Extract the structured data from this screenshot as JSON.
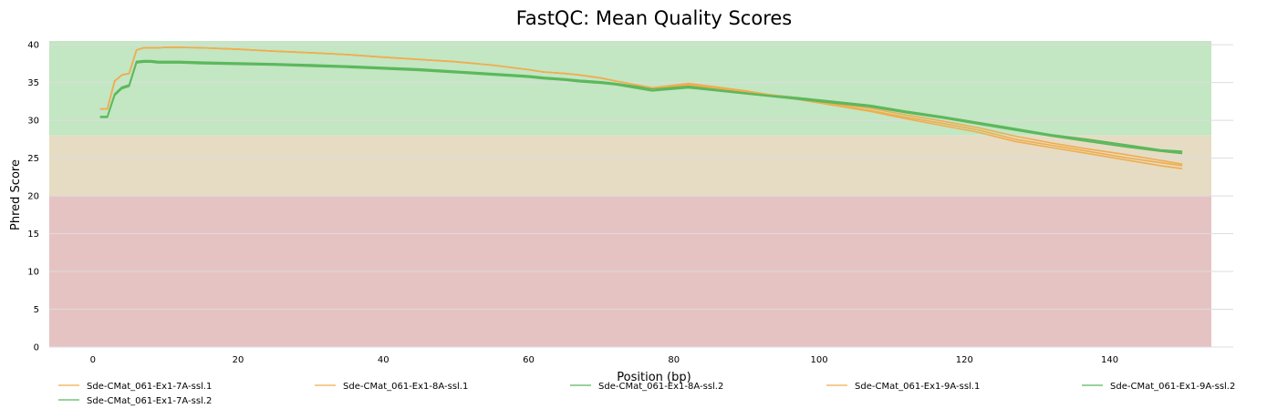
{
  "chart_data": {
    "type": "line",
    "title": "FastQC: Mean Quality Scores",
    "xlabel": "Position (bp)",
    "ylabel": "Phred Score",
    "xlim": [
      -6,
      154
    ],
    "ylim": [
      0,
      40.5
    ],
    "xticks": [
      0,
      20,
      40,
      60,
      80,
      100,
      120,
      140
    ],
    "yticks": [
      0,
      5,
      10,
      15,
      20,
      25,
      30,
      35,
      40
    ],
    "grid": true,
    "legend_position": "bottom",
    "bands": [
      {
        "from": 28,
        "to": 40.5,
        "color": "#c3e6c3"
      },
      {
        "from": 20,
        "to": 28,
        "color": "#e6dcc3"
      },
      {
        "from": 0,
        "to": 20,
        "color": "#e6c3c3"
      }
    ],
    "x": [
      1,
      2,
      3,
      4,
      5,
      6,
      7,
      8,
      9,
      10,
      12,
      15,
      20,
      25,
      30,
      35,
      40,
      45,
      50,
      55,
      60,
      62,
      65,
      67,
      70,
      72,
      77,
      82,
      90,
      100,
      107,
      112,
      117,
      122,
      127,
      132,
      137,
      142,
      147,
      150
    ],
    "series": [
      {
        "name": "Sde-CMat_061-Ex1-7A-ssl.1",
        "color": "#f0ad4e",
        "values": [
          31.5,
          31.5,
          35.2,
          36.0,
          36.2,
          39.3,
          39.6,
          39.6,
          39.6,
          39.65,
          39.65,
          39.6,
          39.4,
          39.15,
          38.95,
          38.7,
          38.35,
          38.05,
          37.75,
          37.3,
          36.7,
          36.4,
          36.2,
          36.0,
          35.6,
          35.2,
          34.3,
          34.6,
          33.7,
          32.4,
          31.3,
          30.4,
          29.6,
          28.7,
          27.5,
          26.7,
          25.9,
          25.1,
          24.4,
          24.0
        ]
      },
      {
        "name": "Sde-CMat_061-Ex1-8A-ssl.1",
        "color": "#f0ad4e",
        "values": [
          31.5,
          31.5,
          35.2,
          36.0,
          36.2,
          39.3,
          39.6,
          39.6,
          39.6,
          39.65,
          39.65,
          39.6,
          39.4,
          39.15,
          38.95,
          38.7,
          38.35,
          38.05,
          37.75,
          37.3,
          36.7,
          36.4,
          36.2,
          36.0,
          35.6,
          35.2,
          34.3,
          34.9,
          33.9,
          32.3,
          31.2,
          30.2,
          29.3,
          28.4,
          27.2,
          26.4,
          25.6,
          24.8,
          24.0,
          23.6
        ]
      },
      {
        "name": "Sde-CMat_061-Ex1-8A-ssl.2",
        "color": "#5cb85c",
        "values": [
          30.5,
          30.5,
          33.5,
          34.4,
          34.7,
          37.8,
          37.9,
          37.9,
          37.8,
          37.8,
          37.8,
          37.7,
          37.6,
          37.5,
          37.35,
          37.2,
          37.0,
          36.8,
          36.5,
          36.2,
          35.9,
          35.7,
          35.5,
          35.3,
          35.1,
          34.9,
          34.2,
          34.5,
          33.7,
          32.7,
          32.0,
          31.2,
          30.5,
          29.7,
          28.9,
          28.1,
          27.5,
          26.8,
          26.1,
          25.9
        ]
      },
      {
        "name": "Sde-CMat_061-Ex1-9A-ssl.1",
        "color": "#f0ad4e",
        "values": [
          31.5,
          31.5,
          35.2,
          36.0,
          36.2,
          39.3,
          39.6,
          39.6,
          39.6,
          39.65,
          39.65,
          39.6,
          39.4,
          39.15,
          38.95,
          38.7,
          38.35,
          38.05,
          37.75,
          37.3,
          36.7,
          36.4,
          36.2,
          36.0,
          35.6,
          35.2,
          34.3,
          34.7,
          33.8,
          32.5,
          31.6,
          30.7,
          29.9,
          29.0,
          27.9,
          27.0,
          26.2,
          25.5,
          24.7,
          24.2
        ]
      },
      {
        "name": "Sde-CMat_061-Ex1-9A-ssl.2",
        "color": "#5cb85c",
        "values": [
          30.4,
          30.4,
          33.3,
          34.2,
          34.5,
          37.6,
          37.7,
          37.7,
          37.6,
          37.6,
          37.6,
          37.5,
          37.4,
          37.3,
          37.15,
          37.0,
          36.8,
          36.6,
          36.3,
          36.0,
          35.7,
          35.5,
          35.3,
          35.1,
          34.9,
          34.7,
          33.9,
          34.3,
          33.5,
          32.5,
          31.8,
          31.0,
          30.3,
          29.5,
          28.7,
          27.9,
          27.2,
          26.5,
          25.9,
          25.6
        ]
      },
      {
        "name": "Sde-CMat_061-Ex1-7A-ssl.2",
        "color": "#5cb85c",
        "values": [
          30.5,
          30.5,
          33.4,
          34.3,
          34.6,
          37.7,
          37.8,
          37.8,
          37.7,
          37.7,
          37.7,
          37.6,
          37.5,
          37.4,
          37.25,
          37.1,
          36.9,
          36.7,
          36.4,
          36.1,
          35.8,
          35.6,
          35.4,
          35.2,
          35.0,
          34.8,
          34.1,
          34.4,
          33.6,
          32.6,
          31.9,
          31.1,
          30.4,
          29.6,
          28.8,
          28.0,
          27.4,
          26.7,
          26.0,
          25.8
        ]
      }
    ]
  }
}
